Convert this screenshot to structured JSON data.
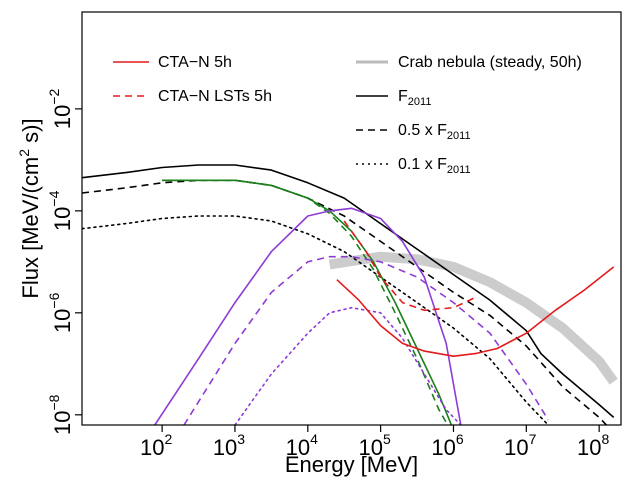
{
  "chart_data": {
    "type": "line",
    "xlabel": "Energy [MeV]",
    "ylabel_parts": {
      "main": "Flux [MeV/(cm",
      "sup": "2",
      "tail": " s)]"
    },
    "x_scale": "log10",
    "y_scale": "log10",
    "xlim_log10": [
      0.9,
      8.3
    ],
    "ylim_log10": [
      -8.2,
      -0.1
    ],
    "x_ticks": [
      {
        "log10": 2,
        "base": "10",
        "exp": "2"
      },
      {
        "log10": 3,
        "base": "10",
        "exp": "3"
      },
      {
        "log10": 4,
        "base": "10",
        "exp": "4"
      },
      {
        "log10": 5,
        "base": "10",
        "exp": "5"
      },
      {
        "log10": 6,
        "base": "10",
        "exp": "6"
      },
      {
        "log10": 7,
        "base": "10",
        "exp": "7"
      },
      {
        "log10": 8,
        "base": "10",
        "exp": "8"
      }
    ],
    "y_ticks": [
      {
        "log10": -2,
        "base": "10",
        "exp": "−2"
      },
      {
        "log10": -4,
        "base": "10",
        "exp": "−4"
      },
      {
        "log10": -6,
        "base": "10",
        "exp": "−6"
      },
      {
        "log10": -8,
        "base": "10",
        "exp": "−8"
      }
    ],
    "legend_left": [
      {
        "label": "CTA−N 5h",
        "color": "#e41a1c",
        "dash": "solid"
      },
      {
        "label": "CTA−N LSTs 5h",
        "color": "#e41a1c",
        "dash": "dashed"
      }
    ],
    "legend_right": [
      {
        "label": "Crab nebula (steady, 50h)",
        "sub": "",
        "color": "#bbbbbb",
        "dash": "thick"
      },
      {
        "label": "F",
        "sub": "2011",
        "color": "#000000",
        "dash": "solid"
      },
      {
        "label": "0.5 x F",
        "sub": "2011",
        "color": "#000000",
        "dash": "dashed"
      },
      {
        "label": "0.1 x F",
        "sub": "2011",
        "color": "#000000",
        "dash": "dotted"
      }
    ],
    "series": [
      {
        "key": "crab",
        "color": "#cccccc",
        "dash": "thick",
        "x": [
          4.3,
          5.0,
          5.5,
          6.0,
          6.5,
          7.0,
          7.5,
          8.0,
          8.2
        ],
        "y": [
          -5.05,
          -4.9,
          -4.95,
          -5.1,
          -5.4,
          -5.8,
          -6.3,
          -6.95,
          -7.35
        ]
      },
      {
        "key": "F2011",
        "color": "#000000",
        "dash": "solid",
        "x": [
          0.9,
          1.5,
          2.0,
          2.5,
          3.0,
          3.5,
          4.0,
          4.5,
          5.0,
          5.5,
          6.0,
          6.5,
          7.0,
          7.2,
          7.5,
          8.0,
          8.2
        ],
        "y": [
          -3.35,
          -3.25,
          -3.15,
          -3.1,
          -3.1,
          -3.2,
          -3.45,
          -3.75,
          -4.25,
          -4.75,
          -5.25,
          -5.75,
          -6.35,
          -6.8,
          -7.2,
          -7.8,
          -8.05
        ]
      },
      {
        "key": "F2011_half",
        "color": "#000000",
        "dash": "dashed",
        "x": [
          0.9,
          1.5,
          2.0,
          2.5,
          3.0,
          3.5,
          4.0,
          4.5,
          5.0,
          5.5,
          6.0,
          6.5,
          7.0,
          7.5,
          8.0,
          8.2
        ],
        "y": [
          -3.65,
          -3.55,
          -3.45,
          -3.4,
          -3.4,
          -3.5,
          -3.75,
          -4.1,
          -4.6,
          -5.1,
          -5.6,
          -6.05,
          -6.65,
          -7.45,
          -8.05,
          -8.35
        ]
      },
      {
        "key": "F2011_tenth",
        "color": "#000000",
        "dash": "dotted",
        "x": [
          0.9,
          1.5,
          2.0,
          2.5,
          3.0,
          3.5,
          4.0,
          4.5,
          5.0,
          5.5,
          6.0,
          6.5,
          7.0,
          7.3
        ],
        "y": [
          -4.35,
          -4.25,
          -4.15,
          -4.1,
          -4.1,
          -4.2,
          -4.45,
          -4.8,
          -5.3,
          -5.8,
          -6.3,
          -6.9,
          -7.75,
          -8.2
        ]
      },
      {
        "key": "green_solid",
        "color": "#1b7f1b",
        "dash": "solid",
        "x": [
          2.0,
          3.0,
          3.5,
          4.0,
          4.3,
          4.6,
          4.9,
          5.2,
          5.5,
          5.8,
          6.0,
          6.15
        ],
        "y": [
          -3.4,
          -3.4,
          -3.5,
          -3.75,
          -4.0,
          -4.4,
          -5.0,
          -5.8,
          -6.7,
          -7.6,
          -8.3,
          -8.4
        ]
      },
      {
        "key": "green_dashed",
        "color": "#1b7f1b",
        "dash": "dashed",
        "x": [
          2.0,
          3.0,
          3.5,
          4.0,
          4.3,
          4.6,
          4.9,
          5.2,
          5.5,
          5.8,
          6.0
        ],
        "y": [
          -3.4,
          -3.4,
          -3.5,
          -3.75,
          -4.05,
          -4.5,
          -5.15,
          -6.0,
          -6.9,
          -7.9,
          -8.4
        ]
      },
      {
        "key": "purple_solid",
        "color": "#8e3bd6",
        "dash": "solid",
        "x": [
          1.9,
          2.5,
          3.0,
          3.5,
          4.0,
          4.3,
          4.6,
          5.0,
          5.3,
          5.6,
          5.9,
          6.1
        ],
        "y": [
          -8.2,
          -6.9,
          -5.8,
          -4.8,
          -4.1,
          -4.0,
          -3.95,
          -4.15,
          -4.6,
          -5.3,
          -6.6,
          -8.2
        ]
      },
      {
        "key": "purple_dashed",
        "color": "#8e3bd6",
        "dash": "dashed",
        "x": [
          2.3,
          3.0,
          3.5,
          4.0,
          4.3,
          4.6,
          5.0,
          5.5,
          6.0,
          6.5,
          7.0,
          7.3
        ],
        "y": [
          -8.2,
          -6.6,
          -5.6,
          -5.0,
          -4.9,
          -4.9,
          -5.0,
          -5.3,
          -5.8,
          -6.4,
          -7.4,
          -8.1
        ]
      },
      {
        "key": "purple_dotted",
        "color": "#8e3bd6",
        "dash": "dotted",
        "x": [
          3.0,
          3.5,
          4.0,
          4.3,
          4.6,
          5.0,
          5.3,
          5.6,
          5.9,
          6.1
        ],
        "y": [
          -8.2,
          -7.2,
          -6.4,
          -6.0,
          -5.9,
          -6.0,
          -6.5,
          -7.2,
          -7.9,
          -8.2
        ]
      },
      {
        "key": "red_cta",
        "color": "#e41a1c",
        "dash": "solid",
        "x": [
          4.4,
          4.7,
          5.0,
          5.3,
          5.6,
          6.0,
          6.3,
          6.6,
          7.0,
          7.4,
          7.8,
          8.2
        ],
        "y": [
          -5.35,
          -5.75,
          -6.25,
          -6.6,
          -6.75,
          -6.85,
          -6.8,
          -6.7,
          -6.4,
          -5.95,
          -5.55,
          -5.1
        ]
      },
      {
        "key": "red_lst",
        "color": "#e41a1c",
        "dash": "dashed",
        "x": [
          4.5,
          4.8,
          5.0,
          5.3,
          5.6,
          6.0,
          6.3
        ],
        "y": [
          -4.2,
          -4.8,
          -5.3,
          -5.8,
          -5.95,
          -5.9,
          -5.7
        ]
      }
    ]
  }
}
